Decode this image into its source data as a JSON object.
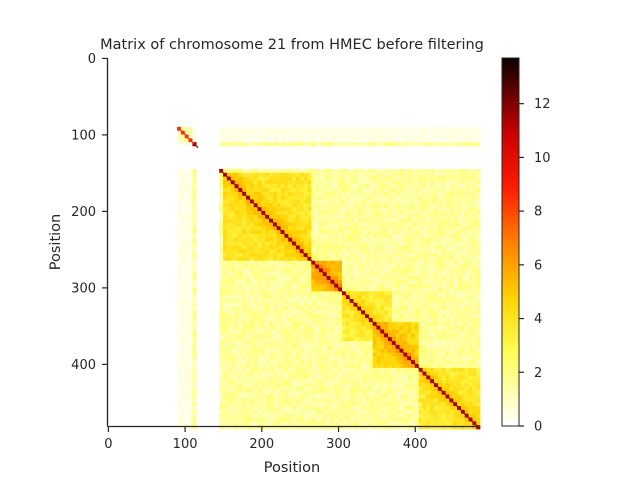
{
  "chart_data": {
    "type": "heatmap",
    "title": "Matrix of chromosome 21 from HMEC before filtering",
    "xlabel": "Position",
    "ylabel": "Position",
    "xlim": [
      0,
      481
    ],
    "ylim": [
      481,
      0
    ],
    "matrix_size": 481,
    "x_ticks": [
      0,
      100,
      200,
      300,
      400
    ],
    "y_ticks": [
      0,
      100,
      200,
      300,
      400
    ],
    "colorbar": {
      "colormap": "hot_r",
      "vmin": 0,
      "vmax": 13.7,
      "ticks": [
        0,
        2,
        4,
        6,
        8,
        10,
        12
      ]
    },
    "empty_ranges": [
      [
        0,
        92
      ],
      [
        117,
        145
      ]
    ],
    "small_block": {
      "start": 92,
      "end": 112,
      "diagonal_value": 8.5
    },
    "main_block": {
      "start": 145,
      "end": 481
    },
    "tads": [
      {
        "start": 152,
        "end": 264,
        "value": 3.9
      },
      {
        "start": 264,
        "end": 305,
        "value": 4.8
      },
      {
        "start": 305,
        "end": 370,
        "value": 3.4
      },
      {
        "start": 345,
        "end": 405,
        "value": 4.4
      },
      {
        "start": 405,
        "end": 481,
        "value": 3.6
      }
    ],
    "background_value": 1.6,
    "diagonal_value": 11.5,
    "colors": [
      "#ffffff",
      "#ffff00",
      "#ff9900",
      "#ff0000",
      "#b40000",
      "#0b0000"
    ]
  }
}
